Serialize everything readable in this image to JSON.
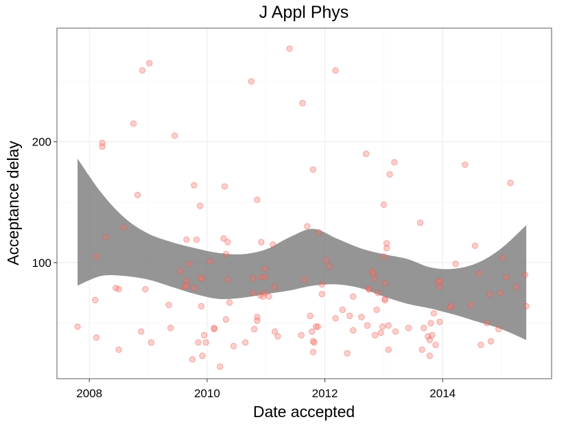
{
  "chart_data": {
    "type": "scatter",
    "title": "J Appl Phys",
    "xlabel": "Date accepted",
    "ylabel": "Acceptance delay",
    "x_ticks": [
      "2008",
      "2010",
      "2012",
      "2014"
    ],
    "y_ticks": [
      100,
      200
    ],
    "xlim": [
      2007.45,
      2015.85
    ],
    "ylim": [
      4,
      294
    ],
    "grid": true,
    "legend": "none",
    "point_color": "#f8766d",
    "ribbon_color": "#7a7a7a",
    "points": [
      [
        2007.8,
        47
      ],
      [
        2008.1,
        69
      ],
      [
        2008.12,
        105
      ],
      [
        2008.12,
        38
      ],
      [
        2008.22,
        199
      ],
      [
        2008.22,
        196
      ],
      [
        2008.28,
        121
      ],
      [
        2008.45,
        79
      ],
      [
        2008.5,
        78
      ],
      [
        2008.5,
        28
      ],
      [
        2008.58,
        129
      ],
      [
        2008.75,
        215
      ],
      [
        2008.82,
        156
      ],
      [
        2008.88,
        43
      ],
      [
        2008.9,
        259
      ],
      [
        2008.95,
        78
      ],
      [
        2009.02,
        265
      ],
      [
        2009.05,
        34
      ],
      [
        2009.35,
        65
      ],
      [
        2009.38,
        46
      ],
      [
        2009.45,
        205
      ],
      [
        2009.55,
        93
      ],
      [
        2009.62,
        80
      ],
      [
        2009.65,
        85
      ],
      [
        2009.65,
        81
      ],
      [
        2009.65,
        119
      ],
      [
        2009.7,
        99
      ],
      [
        2009.75,
        20
      ],
      [
        2009.78,
        79
      ],
      [
        2009.78,
        164
      ],
      [
        2009.82,
        119
      ],
      [
        2009.85,
        34
      ],
      [
        2009.88,
        147
      ],
      [
        2009.9,
        87
      ],
      [
        2009.9,
        87
      ],
      [
        2009.9,
        64
      ],
      [
        2009.92,
        23
      ],
      [
        2009.95,
        40
      ],
      [
        2009.98,
        34
      ],
      [
        2010.05,
        101
      ],
      [
        2010.12,
        45
      ],
      [
        2010.12,
        46
      ],
      [
        2010.22,
        14
      ],
      [
        2010.28,
        120
      ],
      [
        2010.3,
        163
      ],
      [
        2010.32,
        53
      ],
      [
        2010.32,
        107
      ],
      [
        2010.35,
        86
      ],
      [
        2010.35,
        117
      ],
      [
        2010.38,
        67
      ],
      [
        2010.45,
        31
      ],
      [
        2010.65,
        34
      ],
      [
        2010.75,
        250
      ],
      [
        2010.78,
        75
      ],
      [
        2010.78,
        87
      ],
      [
        2010.8,
        45
      ],
      [
        2010.85,
        152
      ],
      [
        2010.85,
        55
      ],
      [
        2010.85,
        52
      ],
      [
        2010.92,
        117
      ],
      [
        2010.92,
        88
      ],
      [
        2010.9,
        73
      ],
      [
        2010.95,
        72
      ],
      [
        2010.98,
        95
      ],
      [
        2010.98,
        88
      ],
      [
        2010.98,
        75
      ],
      [
        2011.05,
        72
      ],
      [
        2011.12,
        115
      ],
      [
        2011.15,
        43
      ],
      [
        2011.15,
        80
      ],
      [
        2011.2,
        39
      ],
      [
        2011.4,
        277
      ],
      [
        2011.6,
        40
      ],
      [
        2011.62,
        232
      ],
      [
        2011.65,
        86
      ],
      [
        2011.7,
        130
      ],
      [
        2011.75,
        56
      ],
      [
        2011.78,
        43
      ],
      [
        2011.8,
        26
      ],
      [
        2011.8,
        35
      ],
      [
        2011.8,
        177
      ],
      [
        2011.82,
        34
      ],
      [
        2011.85,
        47
      ],
      [
        2011.88,
        47
      ],
      [
        2011.9,
        125
      ],
      [
        2011.95,
        74
      ],
      [
        2011.95,
        82
      ],
      [
        2012.02,
        102
      ],
      [
        2012.08,
        97
      ],
      [
        2012.18,
        54
      ],
      [
        2012.18,
        259
      ],
      [
        2012.3,
        61
      ],
      [
        2012.38,
        25
      ],
      [
        2012.42,
        56
      ],
      [
        2012.48,
        72
      ],
      [
        2012.48,
        44
      ],
      [
        2012.62,
        55
      ],
      [
        2012.7,
        190
      ],
      [
        2012.72,
        48
      ],
      [
        2012.75,
        78
      ],
      [
        2012.75,
        78
      ],
      [
        2012.8,
        93
      ],
      [
        2012.82,
        91
      ],
      [
        2012.85,
        87
      ],
      [
        2012.85,
        40
      ],
      [
        2012.88,
        61
      ],
      [
        2012.9,
        75
      ],
      [
        2012.95,
        42
      ],
      [
        2012.98,
        47
      ],
      [
        2013.0,
        105
      ],
      [
        2013.0,
        148
      ],
      [
        2013.02,
        69
      ],
      [
        2013.02,
        83
      ],
      [
        2013.02,
        70
      ],
      [
        2013.05,
        112
      ],
      [
        2013.05,
        116
      ],
      [
        2013.08,
        48
      ],
      [
        2013.08,
        28
      ],
      [
        2013.1,
        173
      ],
      [
        2013.18,
        183
      ],
      [
        2013.2,
        43
      ],
      [
        2013.42,
        46
      ],
      [
        2013.62,
        133
      ],
      [
        2013.65,
        28
      ],
      [
        2013.68,
        46
      ],
      [
        2013.75,
        39
      ],
      [
        2013.78,
        36
      ],
      [
        2013.78,
        23
      ],
      [
        2013.8,
        50
      ],
      [
        2013.82,
        40
      ],
      [
        2013.85,
        58
      ],
      [
        2013.88,
        32
      ],
      [
        2013.92,
        84
      ],
      [
        2013.95,
        85
      ],
      [
        2013.95,
        80
      ],
      [
        2013.95,
        51
      ],
      [
        2014.12,
        63
      ],
      [
        2014.15,
        64
      ],
      [
        2014.22,
        99
      ],
      [
        2014.38,
        181
      ],
      [
        2014.48,
        65
      ],
      [
        2014.55,
        114
      ],
      [
        2014.62,
        91
      ],
      [
        2014.65,
        32
      ],
      [
        2014.75,
        50
      ],
      [
        2014.8,
        74
      ],
      [
        2014.82,
        35
      ],
      [
        2014.95,
        45
      ],
      [
        2014.98,
        75
      ],
      [
        2015.02,
        104
      ],
      [
        2015.08,
        88
      ],
      [
        2015.15,
        166
      ],
      [
        2015.25,
        80
      ],
      [
        2015.4,
        90
      ],
      [
        2015.42,
        64
      ]
    ],
    "smooth": {
      "x": [
        2007.8,
        2008.2,
        2008.6,
        2009.0,
        2009.4,
        2009.8,
        2010.2,
        2010.6,
        2011.0,
        2011.4,
        2011.8,
        2012.2,
        2012.6,
        2013.0,
        2013.4,
        2013.8,
        2014.2,
        2014.6,
        2015.0,
        2015.42
      ],
      "upper": [
        186,
        158,
        137,
        124,
        117,
        112,
        108,
        107,
        111,
        121,
        128,
        120,
        112,
        107,
        103,
        96,
        95,
        100,
        112,
        131
      ],
      "lower": [
        81,
        89,
        89,
        86,
        80,
        74,
        70,
        71,
        74,
        77,
        81,
        82,
        79,
        72,
        66,
        62,
        57,
        51,
        45,
        36
      ]
    }
  }
}
